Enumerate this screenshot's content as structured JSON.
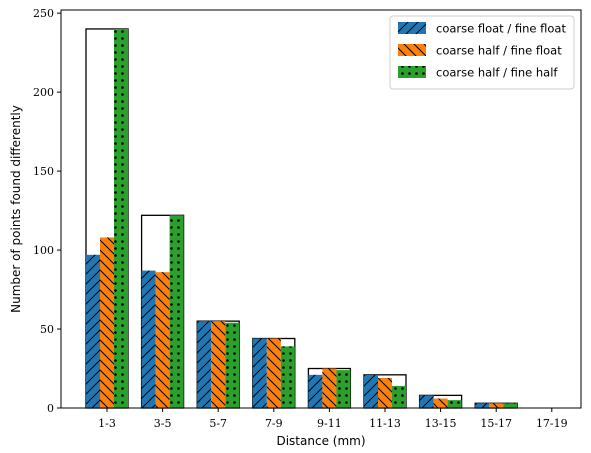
{
  "chart_data": {
    "type": "bar",
    "title": "",
    "xlabel": "Distance (mm)",
    "ylabel": "Number of points found differently",
    "categories": [
      "1-3",
      "3-5",
      "5-7",
      "7-9",
      "9-11",
      "11-13",
      "13-15",
      "15-17",
      "17-19"
    ],
    "ylim": [
      0,
      252
    ],
    "yticks": [
      0,
      50,
      100,
      150,
      200,
      250
    ],
    "totals": [
      240,
      122,
      55,
      44,
      25,
      21,
      8,
      3,
      0
    ],
    "series": [
      {
        "name": "coarse float / fine float",
        "color": "#1f77b4",
        "hatch": "slash",
        "values": [
          97,
          87,
          55,
          44,
          21,
          21,
          8,
          3,
          0
        ]
      },
      {
        "name": "coarse half / fine float",
        "color": "#ff7f0e",
        "hatch": "backslash",
        "values": [
          108,
          86,
          55,
          44,
          25,
          19,
          6,
          3,
          0
        ]
      },
      {
        "name": "coarse half / fine half",
        "color": "#2ca02c",
        "hatch": "dots",
        "values": [
          240,
          122,
          54,
          39,
          24,
          14,
          5,
          3,
          0
        ]
      }
    ],
    "legend_position": "top-right",
    "grid": false
  }
}
